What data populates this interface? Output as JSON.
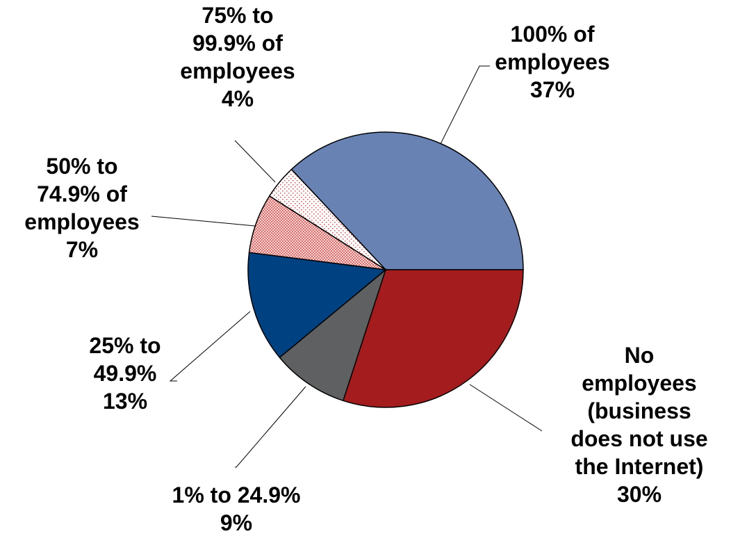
{
  "chart_data": {
    "type": "pie",
    "title": "",
    "slices": [
      {
        "label": [
          "100% of",
          "employees"
        ],
        "value": 37,
        "value_label": "37%",
        "color": "#6982B4",
        "pattern": "solid"
      },
      {
        "label": [
          "No",
          "employees",
          "(business",
          "does not use",
          "the Internet)"
        ],
        "value": 30,
        "value_label": "30%",
        "color": "#A51C1F",
        "pattern": "solid"
      },
      {
        "label": [
          "1% to 24.9%"
        ],
        "value": 9,
        "value_label": "9%",
        "color": "#5F6062",
        "pattern": "solid"
      },
      {
        "label": [
          "25% to",
          "49.9%"
        ],
        "value": 13,
        "value_label": "13%",
        "color": "#004182",
        "pattern": "solid"
      },
      {
        "label": [
          "50% to",
          "74.9% of",
          "employees"
        ],
        "value": 7,
        "value_label": "7%",
        "color": "#D9706E",
        "pattern": "checker"
      },
      {
        "label": [
          "75% to",
          "99.9% of",
          "employees"
        ],
        "value": 4,
        "value_label": "4%",
        "color": "#E06060",
        "pattern": "dots"
      }
    ]
  }
}
